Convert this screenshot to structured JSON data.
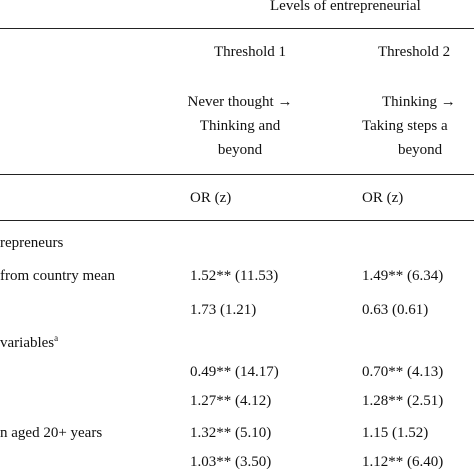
{
  "header": {
    "spanner": "Levels of entrepreneurial",
    "thresholds": [
      {
        "title": "Threshold 1",
        "transition_lines": [
          "Never thought →",
          "Thinking and",
          "beyond"
        ],
        "stat": "OR (z)"
      },
      {
        "title": "Threshold 2",
        "transition_lines": [
          "Thinking →",
          "Taking steps a",
          "beyond"
        ],
        "stat": "OR (z)"
      }
    ]
  },
  "sections": [
    {
      "label": "repreneurs"
    },
    {
      "label": "variables",
      "superscript": "a"
    }
  ],
  "rows": [
    {
      "label": "from country mean",
      "t1": "1.52** (11.53)",
      "t2": "1.49** (6.34)"
    },
    {
      "label": "",
      "t1": "1.73 (1.21)",
      "t2": "0.63 (0.61)"
    },
    {
      "label": "",
      "t1": "0.49** (14.17)",
      "t2": "0.70** (4.13)"
    },
    {
      "label": "",
      "t1": "1.27** (4.12)",
      "t2": "1.28** (2.51)"
    },
    {
      "label": "n aged 20+ years",
      "t1": "1.32** (5.10)",
      "t2": "1.15 (1.52)"
    },
    {
      "label": "",
      "t1": "1.03** (3.50)",
      "t2": "1.12** (6.40)"
    }
  ]
}
